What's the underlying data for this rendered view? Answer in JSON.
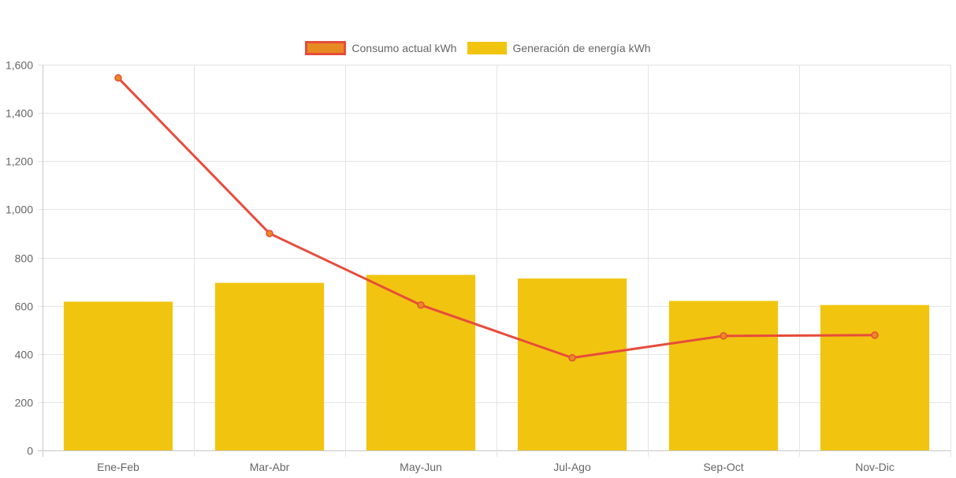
{
  "chart_data": {
    "type": "bar",
    "categories": [
      "Ene-Feb",
      "Mar-Abr",
      "May-Jun",
      "Jul-Ago",
      "Sep-Oct",
      "Nov-Dic"
    ],
    "series": [
      {
        "name": "Consumo actual kWh",
        "type": "line",
        "values": [
          1545,
          900,
          603,
          384,
          475,
          478
        ],
        "color": "#e74c3c",
        "point_fill": "#e88a22"
      },
      {
        "name": "Generación de energía kWh",
        "type": "bar",
        "values": [
          617,
          695,
          728,
          713,
          620,
          603
        ],
        "color": "#f1c40f"
      }
    ],
    "title": "",
    "xlabel": "",
    "ylabel": "",
    "ylim": [
      0,
      1600
    ],
    "yticks": [
      0,
      200,
      400,
      600,
      800,
      1000,
      1200,
      1400,
      1600
    ],
    "ytick_labels": [
      "0",
      "200",
      "400",
      "600",
      "800",
      "1,000",
      "1,200",
      "1,400",
      "1,600"
    ],
    "grid": true,
    "legend_position": "top"
  }
}
